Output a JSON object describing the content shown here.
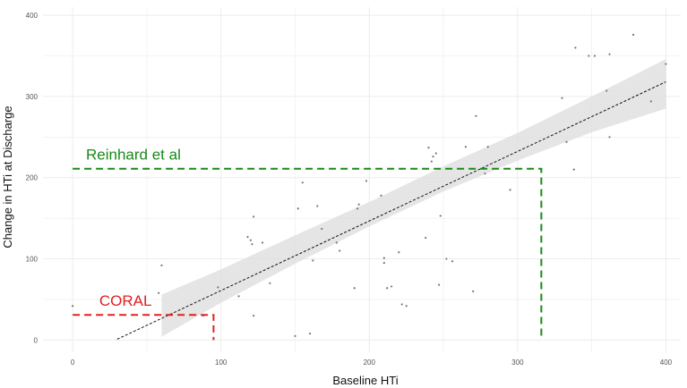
{
  "chart_data": {
    "type": "scatter",
    "title": "",
    "xlabel": "Baseline HTi",
    "ylabel": "Change in HTi at Discharge",
    "xlim": [
      -20,
      410
    ],
    "ylim": [
      -15,
      410
    ],
    "x_ticks": [
      0,
      100,
      200,
      300,
      400
    ],
    "y_ticks": [
      0,
      100,
      200,
      300,
      400
    ],
    "x_tick_labels": [
      "0",
      "100",
      "200",
      "300",
      "400"
    ],
    "y_tick_labels": [
      "0",
      "100",
      "200",
      "300",
      "400"
    ],
    "grid": true,
    "points": [
      [
        0,
        42
      ],
      [
        58,
        58
      ],
      [
        60,
        92
      ],
      [
        88,
        30
      ],
      [
        98,
        65
      ],
      [
        112,
        54
      ],
      [
        118,
        127
      ],
      [
        120,
        123
      ],
      [
        121,
        118
      ],
      [
        122,
        152
      ],
      [
        122,
        30
      ],
      [
        128,
        120
      ],
      [
        133,
        70
      ],
      [
        150,
        5
      ],
      [
        152,
        162
      ],
      [
        155,
        194
      ],
      [
        160,
        8
      ],
      [
        162,
        98
      ],
      [
        165,
        165
      ],
      [
        168,
        137
      ],
      [
        178,
        120
      ],
      [
        180,
        110
      ],
      [
        190,
        64
      ],
      [
        192,
        162
      ],
      [
        193,
        167
      ],
      [
        198,
        196
      ],
      [
        208,
        178
      ],
      [
        210,
        95
      ],
      [
        210,
        101
      ],
      [
        212,
        64
      ],
      [
        215,
        66
      ],
      [
        220,
        108
      ],
      [
        222,
        44
      ],
      [
        225,
        42
      ],
      [
        238,
        126
      ],
      [
        240,
        237
      ],
      [
        242,
        220
      ],
      [
        243,
        226
      ],
      [
        245,
        230
      ],
      [
        247,
        68
      ],
      [
        248,
        153
      ],
      [
        252,
        100
      ],
      [
        256,
        97
      ],
      [
        265,
        238
      ],
      [
        270,
        60
      ],
      [
        272,
        276
      ],
      [
        278,
        205
      ],
      [
        280,
        238
      ],
      [
        295,
        185
      ],
      [
        330,
        298
      ],
      [
        333,
        244
      ],
      [
        338,
        210
      ],
      [
        339,
        360
      ],
      [
        348,
        350
      ],
      [
        352,
        350
      ],
      [
        360,
        307
      ],
      [
        362,
        250
      ],
      [
        362,
        352
      ],
      [
        378,
        376
      ],
      [
        390,
        294
      ],
      [
        400,
        340
      ]
    ],
    "fit_line": {
      "x": [
        30,
        400
      ],
      "y": [
        1,
        318
      ]
    },
    "confidence_band": {
      "x": [
        60,
        100,
        150,
        200,
        250,
        300,
        350,
        400
      ],
      "lower": [
        4,
        46,
        94,
        140,
        183,
        221,
        256,
        285
      ],
      "upper": [
        56,
        87,
        129,
        170,
        214,
        255,
        300,
        346
      ]
    },
    "annotations": [
      {
        "label": "CORAL",
        "color": "#e02020",
        "x": 95,
        "y": 31,
        "label_x": 18,
        "label_y": 42
      },
      {
        "label": "Reinhard et al",
        "color": "#1a8a1a",
        "x": 316,
        "y": 211,
        "label_x": 9,
        "label_y": 222
      }
    ],
    "colors": {
      "points": "#777777",
      "fit_line": "#111111",
      "band": "#dcdcdc",
      "grid": "#ececec"
    }
  }
}
